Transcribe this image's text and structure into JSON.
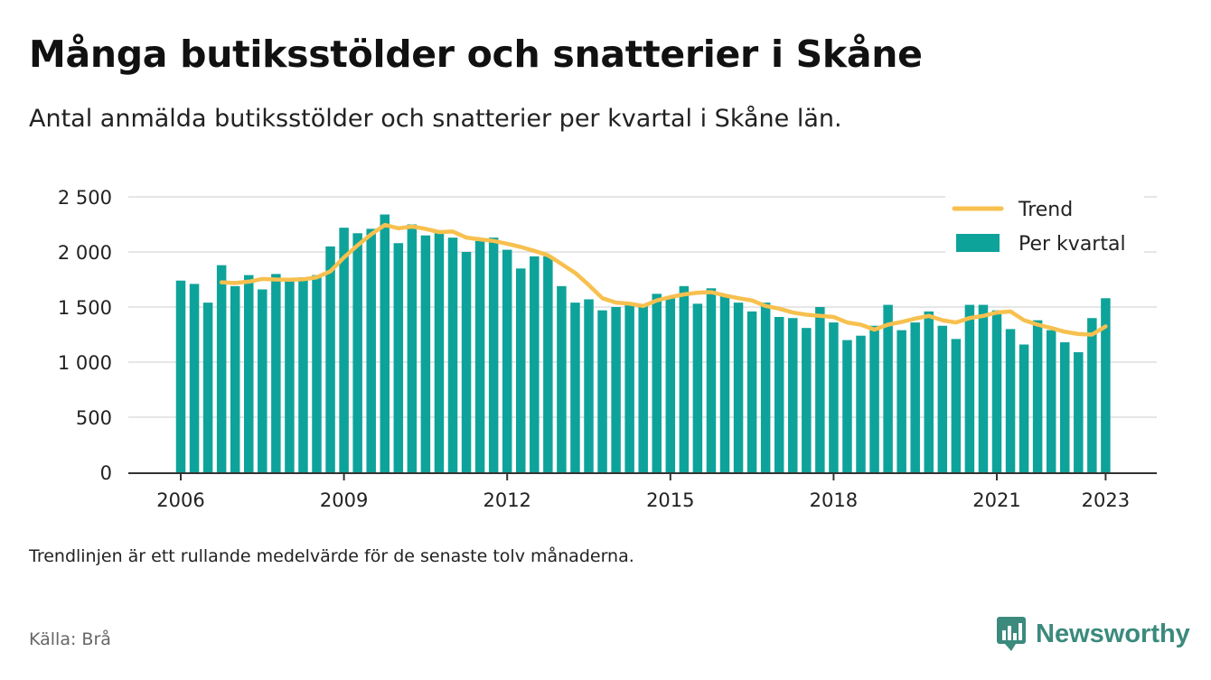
{
  "header": {
    "title": "Många butiksstölder och snatterier i Skåne",
    "subtitle": "Antal anmälda butiksstölder och snatterier per kvartal i Skåne län."
  },
  "footer": {
    "note": "Trendlinjen är ett rullande medelvärde för de senaste tolv månaderna.",
    "source": "Källa: Brå",
    "brand": "Newsworthy",
    "brand_icon": "newsworthy-logo-icon",
    "brand_color": "#3b8a7d"
  },
  "chart_data": {
    "type": "bar",
    "ylim": [
      0,
      2500
    ],
    "yticks": [
      {
        "value": 0,
        "label": "0"
      },
      {
        "value": 500,
        "label": "500"
      },
      {
        "value": 1000,
        "label": "1 000"
      },
      {
        "value": 1500,
        "label": "1 500"
      },
      {
        "value": 2000,
        "label": "2 000"
      },
      {
        "value": 2500,
        "label": "2 500"
      }
    ],
    "xticks": [
      {
        "index": 0,
        "label": "2006"
      },
      {
        "index": 12,
        "label": "2009"
      },
      {
        "index": 24,
        "label": "2012"
      },
      {
        "index": 36,
        "label": "2015"
      },
      {
        "index": 48,
        "label": "2018"
      },
      {
        "index": 60,
        "label": "2021"
      },
      {
        "index": 68,
        "label": "2023"
      }
    ],
    "grid": true,
    "legend_position": "top-right",
    "colors": {
      "bars": "#0ea39a",
      "trend": "#f7c04f",
      "grid": "#dddddd",
      "axis": "#333333"
    },
    "series": [
      {
        "name": "Per kvartal",
        "type": "bar",
        "values": [
          1740,
          1710,
          1540,
          1880,
          1690,
          1790,
          1660,
          1800,
          1740,
          1770,
          1790,
          2050,
          2220,
          2170,
          2210,
          2340,
          2080,
          2250,
          2150,
          2170,
          2130,
          2000,
          2100,
          2130,
          2020,
          1850,
          1960,
          1960,
          1690,
          1540,
          1570,
          1470,
          1500,
          1520,
          1510,
          1620,
          1590,
          1690,
          1530,
          1670,
          1600,
          1540,
          1460,
          1540,
          1410,
          1400,
          1310,
          1500,
          1360,
          1200,
          1240,
          1330,
          1520,
          1290,
          1360,
          1460,
          1330,
          1210,
          1520,
          1520,
          1470,
          1300,
          1160,
          1380,
          1290,
          1180,
          1090,
          1400,
          1580
        ]
      },
      {
        "name": "Trend",
        "type": "line",
        "start_index": 3,
        "values": [
          1725,
          1718,
          1730,
          1755,
          1750,
          1748,
          1752,
          1770,
          1825,
          1950,
          2060,
          2160,
          2245,
          2215,
          2230,
          2210,
          2180,
          2185,
          2130,
          2115,
          2100,
          2075,
          2045,
          2010,
          1970,
          1890,
          1810,
          1700,
          1580,
          1540,
          1530,
          1510,
          1560,
          1590,
          1615,
          1630,
          1635,
          1605,
          1580,
          1560,
          1510,
          1485,
          1450,
          1430,
          1420,
          1410,
          1360,
          1340,
          1295,
          1340,
          1365,
          1395,
          1420,
          1380,
          1360,
          1400,
          1420,
          1450,
          1460,
          1380,
          1340,
          1310,
          1275,
          1255,
          1250,
          1325
        ]
      }
    ]
  }
}
